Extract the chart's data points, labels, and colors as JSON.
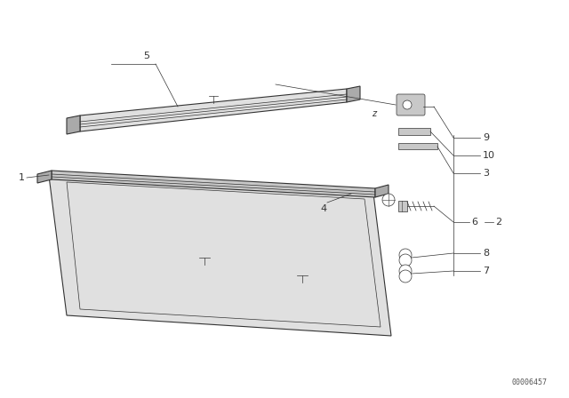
{
  "background_color": "#ffffff",
  "figure_width": 6.4,
  "figure_height": 4.48,
  "dpi": 100,
  "part_number": "00006457",
  "line_color": "#333333",
  "fill_light": "#e0e0e0",
  "fill_mid": "#c8c8c8",
  "fill_dark": "#aaaaaa"
}
